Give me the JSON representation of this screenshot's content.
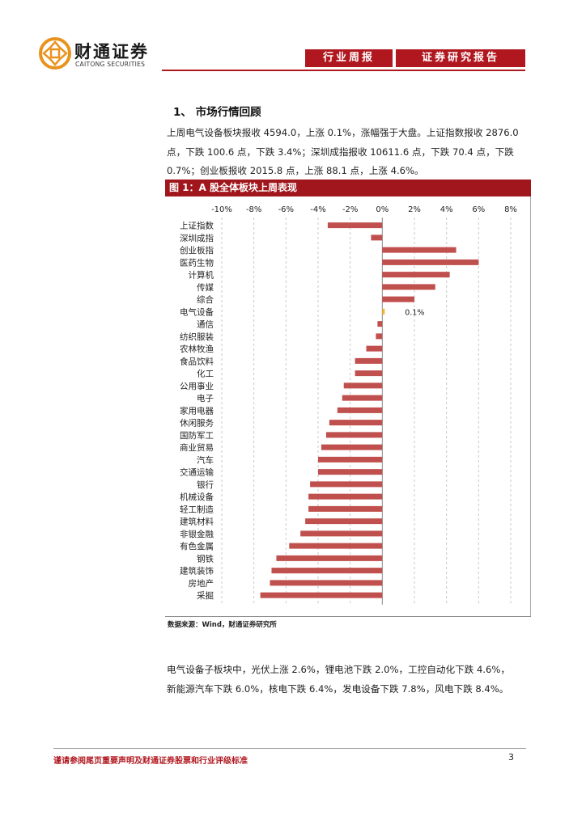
{
  "header": {
    "logo_cn": "财通证券",
    "logo_en": "CAITONG SECURITIES",
    "tag_left": "行业周报",
    "tag_right": "证券研究报告"
  },
  "section": {
    "title": "1、  市场行情回顾",
    "para1": "上周电气设备板块报收 4594.0，上涨 0.1%，涨幅强于大盘。上证指数报收 2876.0",
    "para2": "点，下跌 100.6 点，下跌 3.4%；深圳成指报收 10611.6 点，下跌 70.4 点，下跌",
    "para3": "0.7%；创业板报收 2015.8 点，上涨 88.1 点，上涨 4.6%。"
  },
  "figure": {
    "title": "图 1：A 股全体板块上周表现",
    "source": "数据来源：Wind，财通证券研究所"
  },
  "chart_data": {
    "type": "bar",
    "orientation": "horizontal",
    "xlim": [
      -10,
      8
    ],
    "xticks": [
      "-10%",
      "-8%",
      "-6%",
      "-4%",
      "-2%",
      "0%",
      "2%",
      "4%",
      "6%",
      "8%"
    ],
    "grid": "vertical dashed",
    "categories": [
      "上证指数",
      "深圳成指",
      "创业板指",
      "医药生物",
      "计算机",
      "传媒",
      "综合",
      "电气设备",
      "通信",
      "纺织服装",
      "农林牧渔",
      "食品饮料",
      "化工",
      "公用事业",
      "电子",
      "家用电器",
      "休闲服务",
      "国防军工",
      "商业贸易",
      "汽车",
      "交通运输",
      "银行",
      "机械设备",
      "轻工制造",
      "建筑材料",
      "非银金融",
      "有色金属",
      "钢铁",
      "建筑装饰",
      "房地产",
      "采掘"
    ],
    "values": [
      -3.4,
      -0.7,
      4.6,
      6.0,
      4.2,
      3.3,
      2.0,
      0.1,
      -0.3,
      -0.4,
      -1.0,
      -1.7,
      -1.7,
      -2.4,
      -2.5,
      -2.8,
      -3.3,
      -3.5,
      -3.8,
      -4.0,
      -4.0,
      -4.5,
      -4.6,
      -4.6,
      -4.8,
      -5.1,
      -5.8,
      -6.6,
      -6.9,
      -7.0,
      -7.6
    ],
    "highlight": {
      "category": "电气设备",
      "label": "0.1%"
    },
    "colors": {
      "bar": "#c0504d",
      "highlight": "#f2b830"
    }
  },
  "section2": {
    "para1": "电气设备子板块中，光伏上涨 2.6%，锂电池下跌 2.0%，工控自动化下跌 4.6%，",
    "para2": "新能源汽车下跌 6.0%，核电下跌 6.4%，发电设备下跌 7.8%，风电下跌 8.4%。"
  },
  "footer": {
    "disclaimer": "谨请参阅尾页重要声明及财通证券股票和行业评级标准",
    "page": "3"
  }
}
